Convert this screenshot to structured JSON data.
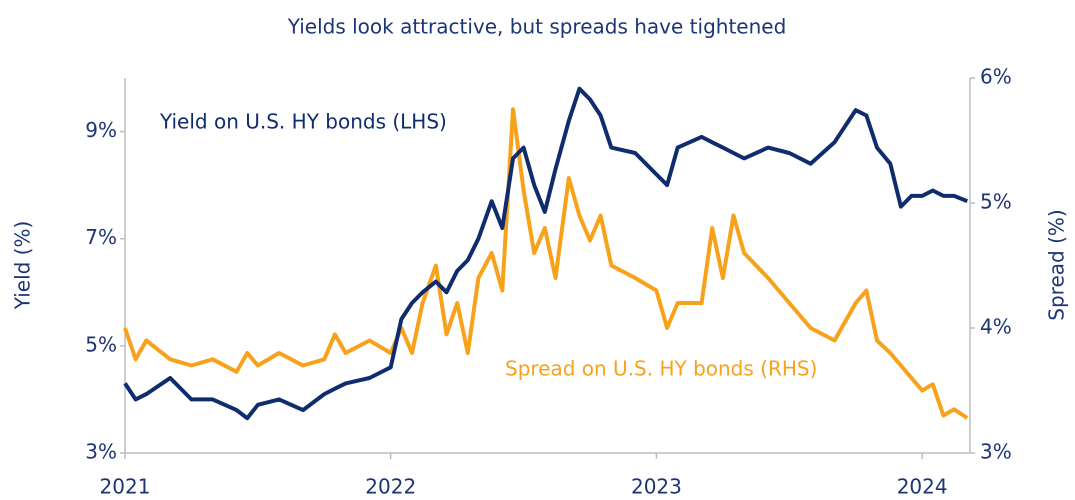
{
  "chart_data": {
    "type": "line",
    "title": "Yields look attractive, but spreads have tightened",
    "y_label": "Yield (%)",
    "y2_label": "Spread (%)",
    "annotations": [
      "Yield on U.S. HY bonds (LHS)",
      "Spread on U.S. HY bonds (RHS)"
    ],
    "x": [
      2021.0,
      2021.04,
      2021.08,
      2021.17,
      2021.25,
      2021.33,
      2021.42,
      2021.46,
      2021.5,
      2021.58,
      2021.67,
      2021.75,
      2021.79,
      2021.83,
      2021.92,
      2022.0,
      2022.04,
      2022.08,
      2022.12,
      2022.17,
      2022.21,
      2022.25,
      2022.29,
      2022.33,
      2022.38,
      2022.42,
      2022.46,
      2022.5,
      2022.54,
      2022.58,
      2022.62,
      2022.67,
      2022.71,
      2022.75,
      2022.79,
      2022.83,
      2022.92,
      2023.0,
      2023.04,
      2023.08,
      2023.17,
      2023.21,
      2023.25,
      2023.29,
      2023.33,
      2023.42,
      2023.5,
      2023.58,
      2023.67,
      2023.75,
      2023.79,
      2023.83,
      2023.88,
      2023.92,
      2023.96,
      2024.0,
      2024.04,
      2024.08,
      2024.12,
      2024.17
    ],
    "series": [
      {
        "color": "#0f2d6e",
        "values": [
          4.3,
          4.0,
          4.1,
          4.4,
          4.0,
          4.0,
          3.8,
          3.65,
          3.9,
          4.0,
          3.8,
          4.1,
          4.2,
          4.3,
          4.4,
          4.6,
          5.5,
          5.8,
          6.0,
          6.2,
          6.0,
          6.4,
          6.6,
          7.0,
          7.7,
          7.2,
          8.5,
          8.7,
          8.0,
          7.5,
          8.3,
          9.2,
          9.8,
          9.6,
          9.3,
          8.7,
          8.6,
          8.2,
          8.0,
          8.7,
          8.9,
          8.8,
          8.7,
          8.6,
          8.5,
          8.7,
          8.6,
          8.4,
          8.8,
          9.4,
          9.3,
          8.7,
          8.4,
          7.6,
          7.8,
          7.8,
          7.9,
          7.8,
          7.8,
          7.7
        ]
      },
      {
        "color": "#f8a21c",
        "axis": "y2",
        "values": [
          4.0,
          3.75,
          3.9,
          3.75,
          3.7,
          3.75,
          3.65,
          3.8,
          3.7,
          3.8,
          3.7,
          3.75,
          3.95,
          3.8,
          3.9,
          3.8,
          4.0,
          3.8,
          4.2,
          4.5,
          3.95,
          4.2,
          3.8,
          4.4,
          4.6,
          4.3,
          5.75,
          5.1,
          4.6,
          4.8,
          4.4,
          5.2,
          4.9,
          4.7,
          4.9,
          4.5,
          4.4,
          4.3,
          4.0,
          4.2,
          4.2,
          4.8,
          4.4,
          4.9,
          4.6,
          4.4,
          4.2,
          4.0,
          3.9,
          4.2,
          4.3,
          3.9,
          3.8,
          3.7,
          3.6,
          3.5,
          3.55,
          3.3,
          3.35,
          3.28
        ]
      }
    ],
    "xlim": [
      2021,
      2024.18
    ],
    "xticks": [
      2021,
      2022,
      2023,
      2024
    ],
    "ylim": [
      3,
      10
    ],
    "yticks": [
      {
        "value": 3,
        "label": "3%"
      },
      {
        "value": 5,
        "label": "5%"
      },
      {
        "value": 7,
        "label": "7%"
      },
      {
        "value": 9,
        "label": "9%"
      }
    ],
    "y2lim": [
      3,
      6
    ],
    "y2ticks": [
      {
        "value": 3,
        "label": "3%"
      },
      {
        "value": 4,
        "label": "4%"
      },
      {
        "value": 5,
        "label": "5%"
      },
      {
        "value": 6,
        "label": "6%"
      }
    ]
  }
}
